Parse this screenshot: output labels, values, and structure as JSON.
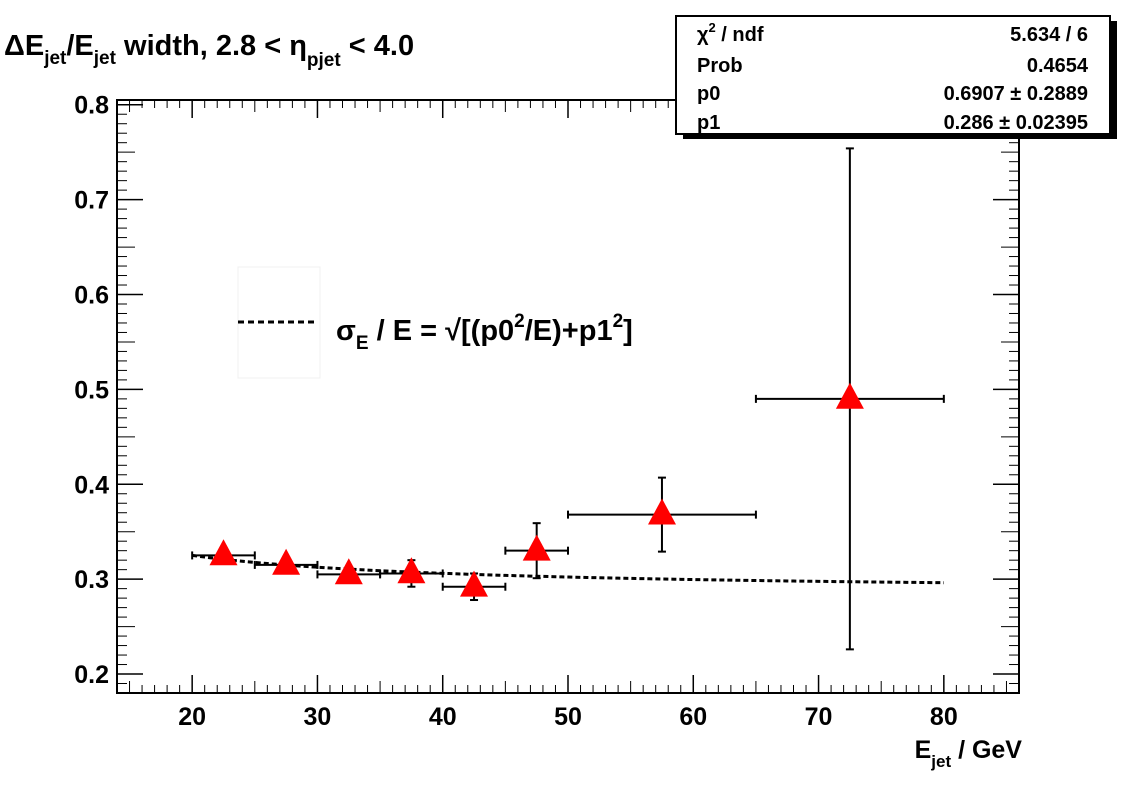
{
  "chart_data": {
    "type": "scatter",
    "title": {
      "pre": "ΔE",
      "sub1": "jet",
      "mid": "/E",
      "sub2": "jet",
      "post": " width, 2.8 < η",
      "sub3": "pjet",
      "tail": " < 4.0"
    },
    "xlabel": {
      "main": "E",
      "sub": "jet",
      "rest": " / GeV"
    },
    "ylabel": "",
    "xlim": [
      14,
      86
    ],
    "ylim": [
      0.18,
      0.805
    ],
    "x_ticks": [
      20,
      30,
      40,
      50,
      60,
      70,
      80
    ],
    "x_tick_labels": [
      "20",
      "30",
      "40",
      "50",
      "60",
      "70",
      "80"
    ],
    "y_ticks": [
      0.2,
      0.3,
      0.4,
      0.5,
      0.6,
      0.7,
      0.8
    ],
    "y_tick_labels": [
      "0.2",
      "0.3",
      "0.4",
      "0.5",
      "0.6",
      "0.7",
      "0.8"
    ],
    "series": [
      {
        "marker": "triangle",
        "color": "#ff0000",
        "points": [
          {
            "x": 22.5,
            "y": 0.325,
            "xerr": 2.5,
            "yerr": 0.004
          },
          {
            "x": 27.5,
            "y": 0.315,
            "xerr": 2.5,
            "yerr": 0.004
          },
          {
            "x": 32.5,
            "y": 0.305,
            "xerr": 2.5,
            "yerr": 0.006
          },
          {
            "x": 37.5,
            "y": 0.306,
            "xerr": 2.5,
            "yerr": 0.014
          },
          {
            "x": 42.5,
            "y": 0.292,
            "xerr": 2.5,
            "yerr": 0.014
          },
          {
            "x": 47.5,
            "y": 0.33,
            "xerr": 2.5,
            "yerr": 0.029
          },
          {
            "x": 57.5,
            "y": 0.368,
            "xerr": 7.5,
            "yerr": 0.039
          },
          {
            "x": 72.5,
            "y": 0.49,
            "xerr": 7.5,
            "yerr": 0.264
          }
        ]
      }
    ],
    "fit": {
      "function": "sqrt(p0^2/E + p1^2)",
      "p0": 0.6907,
      "p1": 0.286,
      "x_range": [
        20,
        80
      ],
      "style": "dashed"
    },
    "legend": {
      "placement": "center-left",
      "label": {
        "sigma": "σ",
        "sigma_sub": "E",
        "part1": " / E = √[(p0",
        "sup1": "2",
        "part2": "/E)+p1",
        "sup2": "2",
        "part3": "]"
      }
    },
    "stats_box": {
      "placement": "top-right",
      "rows": [
        {
          "label": "χ",
          "label_sup": "2",
          "label_rest": " / ndf",
          "value": "5.634 / 6"
        },
        {
          "label": "Prob",
          "label_sup": "",
          "label_rest": "",
          "value": "0.4654"
        },
        {
          "label": "p0",
          "label_sup": "",
          "label_rest": "",
          "value": "0.6907 ± 0.2889"
        },
        {
          "label": "p1",
          "label_sup": "",
          "label_rest": "",
          "value": "0.286 ± 0.02395"
        }
      ]
    },
    "grid": false
  }
}
